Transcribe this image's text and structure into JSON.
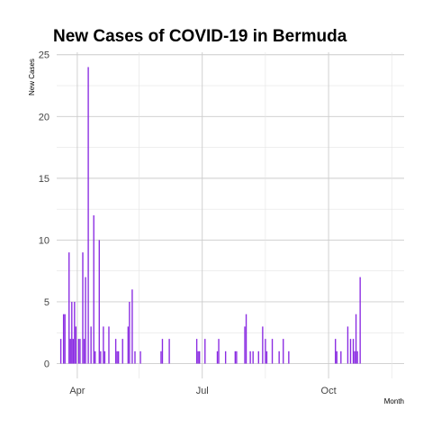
{
  "chart_data": {
    "type": "bar",
    "title": "New Cases of COVID-19 in Bermuda",
    "xlabel": "Month",
    "ylabel": "New Cases",
    "x_unit": "date",
    "xlim": [
      "2020-03-17",
      "2020-11-25"
    ],
    "ylim": [
      -1.2,
      25.2
    ],
    "y_ticks": [
      0,
      5,
      10,
      15,
      20,
      25
    ],
    "x_ticks": [
      {
        "date": "2020-04-01",
        "label": "Apr"
      },
      {
        "date": "2020-07-01",
        "label": "Jul"
      },
      {
        "date": "2020-10-01",
        "label": "Oct"
      }
    ],
    "x_minor_ticks": [
      "2020-05-16",
      "2020-08-16",
      "2020-11-16"
    ],
    "grid": true,
    "bar_color": "#8A2BE2",
    "points": [
      {
        "x": "2020-03-20",
        "y": 2
      },
      {
        "x": "2020-03-22",
        "y": 4
      },
      {
        "x": "2020-03-23",
        "y": 4
      },
      {
        "x": "2020-03-26",
        "y": 9
      },
      {
        "x": "2020-03-27",
        "y": 2
      },
      {
        "x": "2020-03-28",
        "y": 5
      },
      {
        "x": "2020-03-29",
        "y": 2
      },
      {
        "x": "2020-03-30",
        "y": 5
      },
      {
        "x": "2020-03-31",
        "y": 3
      },
      {
        "x": "2020-04-02",
        "y": 2
      },
      {
        "x": "2020-04-03",
        "y": 2
      },
      {
        "x": "2020-04-05",
        "y": 9
      },
      {
        "x": "2020-04-06",
        "y": 2
      },
      {
        "x": "2020-04-07",
        "y": 7
      },
      {
        "x": "2020-04-09",
        "y": 24
      },
      {
        "x": "2020-04-11",
        "y": 3
      },
      {
        "x": "2020-04-13",
        "y": 12
      },
      {
        "x": "2020-04-14",
        "y": 1
      },
      {
        "x": "2020-04-17",
        "y": 10
      },
      {
        "x": "2020-04-18",
        "y": 1
      },
      {
        "x": "2020-04-20",
        "y": 3
      },
      {
        "x": "2020-04-21",
        "y": 1
      },
      {
        "x": "2020-04-24",
        "y": 3
      },
      {
        "x": "2020-04-29",
        "y": 2
      },
      {
        "x": "2020-04-30",
        "y": 1
      },
      {
        "x": "2020-05-01",
        "y": 1
      },
      {
        "x": "2020-05-04",
        "y": 2
      },
      {
        "x": "2020-05-08",
        "y": 3
      },
      {
        "x": "2020-05-09",
        "y": 5
      },
      {
        "x": "2020-05-11",
        "y": 6
      },
      {
        "x": "2020-05-13",
        "y": 1
      },
      {
        "x": "2020-05-17",
        "y": 1
      },
      {
        "x": "2020-06-01",
        "y": 1
      },
      {
        "x": "2020-06-02",
        "y": 2
      },
      {
        "x": "2020-06-07",
        "y": 2
      },
      {
        "x": "2020-06-27",
        "y": 2
      },
      {
        "x": "2020-06-28",
        "y": 1
      },
      {
        "x": "2020-06-29",
        "y": 1
      },
      {
        "x": "2020-07-03",
        "y": 2
      },
      {
        "x": "2020-07-12",
        "y": 1
      },
      {
        "x": "2020-07-13",
        "y": 2
      },
      {
        "x": "2020-07-18",
        "y": 1
      },
      {
        "x": "2020-07-25",
        "y": 1
      },
      {
        "x": "2020-07-26",
        "y": 1
      },
      {
        "x": "2020-08-01",
        "y": 3
      },
      {
        "x": "2020-08-02",
        "y": 4
      },
      {
        "x": "2020-08-05",
        "y": 1
      },
      {
        "x": "2020-08-07",
        "y": 1
      },
      {
        "x": "2020-08-11",
        "y": 1
      },
      {
        "x": "2020-08-14",
        "y": 3
      },
      {
        "x": "2020-08-16",
        "y": 2
      },
      {
        "x": "2020-08-17",
        "y": 1
      },
      {
        "x": "2020-08-21",
        "y": 2
      },
      {
        "x": "2020-08-26",
        "y": 1
      },
      {
        "x": "2020-08-29",
        "y": 2
      },
      {
        "x": "2020-09-02",
        "y": 1
      },
      {
        "x": "2020-10-06",
        "y": 2
      },
      {
        "x": "2020-10-07",
        "y": 1
      },
      {
        "x": "2020-10-10",
        "y": 1
      },
      {
        "x": "2020-10-15",
        "y": 3
      },
      {
        "x": "2020-10-17",
        "y": 2
      },
      {
        "x": "2020-10-19",
        "y": 2
      },
      {
        "x": "2020-10-20",
        "y": 1
      },
      {
        "x": "2020-10-21",
        "y": 4
      },
      {
        "x": "2020-10-22",
        "y": 1
      },
      {
        "x": "2020-10-24",
        "y": 7
      }
    ]
  }
}
